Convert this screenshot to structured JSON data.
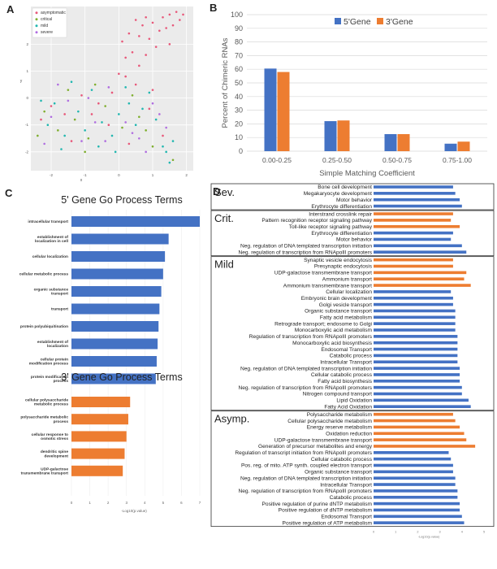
{
  "panels": {
    "a": "A",
    "b": "B",
    "c": "C",
    "d": "D"
  },
  "colors": {
    "asymptomatic": "#e8587a",
    "critical": "#7fae2e",
    "mild": "#22b7b0",
    "severe": "#b06ee0",
    "blue": "#4472c4",
    "orange": "#ed7d31"
  },
  "chart_data": [
    {
      "id": "A",
      "type": "scatter",
      "title": "",
      "xlabel": "x",
      "ylabel": "y",
      "xlim": [
        -2.6,
        2.2
      ],
      "ylim": [
        -2.7,
        3.4
      ],
      "xticks": [
        -2,
        -1,
        0,
        1,
        2
      ],
      "yticks": [
        -2,
        -1,
        0,
        1,
        2
      ],
      "grid": true,
      "legend": "top-left",
      "series": [
        {
          "name": "asymptomatic",
          "color": "#e8587a",
          "points": [
            [
              0.1,
              2.1
            ],
            [
              0.3,
              2.4
            ],
            [
              0.5,
              2.9
            ],
            [
              0.6,
              2.3
            ],
            [
              0.7,
              2.7
            ],
            [
              0.8,
              3.0
            ],
            [
              0.9,
              2.2
            ],
            [
              1.0,
              2.8
            ],
            [
              1.2,
              2.5
            ],
            [
              1.3,
              3.0
            ],
            [
              1.4,
              2.6
            ],
            [
              1.5,
              3.1
            ],
            [
              1.6,
              2.7
            ],
            [
              1.7,
              3.2
            ],
            [
              1.8,
              2.9
            ],
            [
              1.9,
              3.1
            ],
            [
              0.2,
              1.5
            ],
            [
              0.4,
              1.7
            ],
            [
              0.6,
              1.2
            ],
            [
              0.8,
              1.6
            ],
            [
              1.1,
              1.9
            ],
            [
              0.2,
              0.8
            ],
            [
              0.5,
              0.5
            ],
            [
              -0.2,
              0.2
            ],
            [
              -0.6,
              -0.2
            ],
            [
              -1.1,
              0.1
            ],
            [
              -1.6,
              -0.6
            ],
            [
              -2.0,
              -0.3
            ],
            [
              -0.3,
              -1.0
            ],
            [
              0.9,
              -0.4
            ],
            [
              1.3,
              -1.4
            ],
            [
              -1.4,
              -1.6
            ],
            [
              -0.8,
              -0.6
            ],
            [
              0.3,
              -1.7
            ],
            [
              -2.3,
              -0.8
            ],
            [
              1.5,
              2.0
            ],
            [
              0.0,
              0.9
            ],
            [
              1.0,
              0.3
            ]
          ]
        },
        {
          "name": "critical",
          "color": "#7fae2e",
          "points": [
            [
              -2.2,
              -0.5
            ],
            [
              -1.8,
              -1.2
            ],
            [
              -1.3,
              -0.8
            ],
            [
              -0.9,
              -1.5
            ],
            [
              -0.4,
              -0.3
            ],
            [
              0.1,
              -1.1
            ],
            [
              0.6,
              -0.7
            ],
            [
              1.0,
              -1.8
            ],
            [
              -1.5,
              0.3
            ],
            [
              -0.7,
              0.5
            ],
            [
              0.4,
              0.1
            ],
            [
              -2.4,
              -1.4
            ],
            [
              -1.0,
              -2.0
            ],
            [
              0.8,
              -1.2
            ],
            [
              1.6,
              -2.3
            ]
          ]
        },
        {
          "name": "mild",
          "color": "#22b7b0",
          "points": [
            [
              -2.1,
              -1.0
            ],
            [
              -1.9,
              -0.2
            ],
            [
              -1.6,
              -1.4
            ],
            [
              -1.2,
              -0.5
            ],
            [
              -1.0,
              -1.2
            ],
            [
              -0.8,
              0.3
            ],
            [
              -0.5,
              -0.9
            ],
            [
              -0.2,
              -1.4
            ],
            [
              0.0,
              -0.6
            ],
            [
              0.3,
              -0.2
            ],
            [
              0.5,
              -1.0
            ],
            [
              0.7,
              -0.4
            ],
            [
              1.1,
              -0.8
            ],
            [
              1.3,
              -1.8
            ],
            [
              1.4,
              -2.0
            ],
            [
              1.5,
              -2.4
            ],
            [
              1.6,
              -1.6
            ],
            [
              -1.4,
              0.6
            ],
            [
              -0.6,
              -1.8
            ],
            [
              0.2,
              0.4
            ],
            [
              -2.3,
              -0.1
            ],
            [
              -1.7,
              -1.9
            ],
            [
              0.9,
              0.2
            ],
            [
              -0.1,
              -2.0
            ]
          ]
        },
        {
          "name": "severe",
          "color": "#b06ee0",
          "points": [
            [
              -2.0,
              -0.7
            ],
            [
              -1.5,
              -0.1
            ],
            [
              -1.1,
              -1.6
            ],
            [
              -0.7,
              -0.9
            ],
            [
              -0.3,
              0.4
            ],
            [
              0.2,
              -0.9
            ],
            [
              0.6,
              -1.5
            ],
            [
              1.0,
              -0.2
            ],
            [
              -1.8,
              0.5
            ],
            [
              -0.4,
              -1.6
            ],
            [
              0.4,
              -1.3
            ],
            [
              1.2,
              -0.6
            ],
            [
              -2.2,
              -1.7
            ],
            [
              -0.9,
              0.0
            ],
            [
              0.8,
              -2.0
            ],
            [
              1.4,
              -1.1
            ]
          ]
        }
      ]
    },
    {
      "id": "B",
      "type": "bar",
      "title": "",
      "xlabel": "Simple Matching Coefficient",
      "ylabel": "Percent of Chimeric RNAs",
      "ylim": [
        0,
        100
      ],
      "yticks": [
        0,
        10,
        20,
        30,
        40,
        50,
        60,
        70,
        80,
        90,
        100
      ],
      "grid": true,
      "legend": "top-right",
      "categories": [
        "0.00-0.25",
        "0.25-0.50",
        "0.50-0.75",
        "0.75-1.00"
      ],
      "series": [
        {
          "name": "5'Gene",
          "color": "#4472c4",
          "values": [
            60.5,
            22,
            12.5,
            5.5
          ]
        },
        {
          "name": "3'Gene",
          "color": "#ed7d31",
          "values": [
            58,
            22.5,
            12.5,
            7
          ]
        }
      ]
    },
    {
      "id": "C",
      "type": "bar",
      "orientation": "horizontal",
      "xlabel": "-Log10(p.value)",
      "xlim": [
        0,
        7
      ],
      "xticks": [
        0,
        1,
        2,
        3,
        4,
        5,
        6,
        7
      ],
      "sections": [
        {
          "title": "5' Gene Go Process Terms",
          "color": "#4472c4",
          "categories": [
            "intracellular transport",
            "establishment of localization in cell",
            "cellular localization",
            "cellular metabolic process",
            "organic substance transport",
            "transport",
            "protein polyubiquitination",
            "establishment of localization",
            "cellular protein modification process",
            "protein modification process"
          ],
          "values": [
            7.0,
            5.3,
            5.1,
            5.0,
            4.9,
            4.8,
            4.75,
            4.7,
            4.65,
            4.6
          ]
        },
        {
          "title": "3' Gene Go Process Terms",
          "color": "#ed7d31",
          "categories": [
            "cellular polysaccharide metabolic process",
            "polysaccharide metabolic process",
            "cellular response to osmotic stress",
            "dendritic spine development",
            "UDP-galactose transmembrane transport"
          ],
          "values": [
            3.2,
            3.1,
            3.0,
            2.9,
            2.8
          ]
        }
      ]
    },
    {
      "id": "D",
      "type": "bar",
      "orientation": "horizontal",
      "xlabel": "-Log10(p.value)",
      "xlim": [
        0,
        5
      ],
      "groups": [
        {
          "title": "Sev.",
          "items": [
            {
              "label": "Bone cell development",
              "value": 3.6,
              "side": "5"
            },
            {
              "label": "Megakaryocyte development",
              "value": 3.7,
              "side": "5"
            },
            {
              "label": "Motor behavior",
              "value": 3.9,
              "side": "5"
            },
            {
              "label": "Erythrocyte differentiation",
              "value": 4.0,
              "side": "5"
            }
          ]
        },
        {
          "title": "Crit.",
          "items": [
            {
              "label": "Interstrand crosslink repair",
              "value": 3.6,
              "side": "3"
            },
            {
              "label": "Pattern recognition receptor signaling pathway",
              "value": 3.5,
              "side": "3"
            },
            {
              "label": "Toll-like receptor signaling pathway",
              "value": 3.9,
              "side": "3"
            },
            {
              "label": "Erythrocyte differentiation",
              "value": 3.6,
              "side": "5"
            },
            {
              "label": "Motor behavior",
              "value": 3.5,
              "side": "5"
            },
            {
              "label": "Neg. regulation of DNA templated transcription initiation",
              "value": 4.0,
              "side": "5"
            },
            {
              "label": "Neg. regulation of transcription from RNApolII promoters",
              "value": 4.2,
              "side": "5"
            }
          ]
        },
        {
          "title": "Mild",
          "items": [
            {
              "label": "Synaptic vesicle endocytosis",
              "value": 3.6,
              "side": "3"
            },
            {
              "label": "Presynaptic endocytosis",
              "value": 3.6,
              "side": "3"
            },
            {
              "label": "UDP-galactose transmembrane transport",
              "value": 4.2,
              "side": "3"
            },
            {
              "label": "Ammonium transport",
              "value": 4.1,
              "side": "3"
            },
            {
              "label": "Ammonium transmembrane transport",
              "value": 4.4,
              "side": "3"
            },
            {
              "label": "Cellular localization",
              "value": 3.5,
              "side": "5"
            },
            {
              "label": "Embryonic brain development",
              "value": 3.6,
              "side": "5"
            },
            {
              "label": "Golgi vesicle transport",
              "value": 3.6,
              "side": "5"
            },
            {
              "label": "Organic substance transport",
              "value": 3.7,
              "side": "5"
            },
            {
              "label": "Fatty acid metabolism",
              "value": 3.7,
              "side": "5"
            },
            {
              "label": "Retrograde transport; endosome to Golgi",
              "value": 3.7,
              "side": "5"
            },
            {
              "label": "Monocarboxylic acid metabolism",
              "value": 3.7,
              "side": "5"
            },
            {
              "label": "Regulation of transcription from RNApolII promoters",
              "value": 3.8,
              "side": "5"
            },
            {
              "label": "Monocarboxylic acid biosynthesis",
              "value": 3.8,
              "side": "5"
            },
            {
              "label": "Endosomal Transport",
              "value": 3.8,
              "side": "5"
            },
            {
              "label": "Catabolic process",
              "value": 3.8,
              "side": "5"
            },
            {
              "label": "Intracellular Transport",
              "value": 3.8,
              "side": "5"
            },
            {
              "label": "Neg. regulation of DNA templated transcription initiation",
              "value": 3.9,
              "side": "5"
            },
            {
              "label": "Cellular catabolic process",
              "value": 3.9,
              "side": "5"
            },
            {
              "label": "Fatty acid biosynthesis",
              "value": 3.9,
              "side": "5"
            },
            {
              "label": "Neg. regulation of transcription from RNApolII promoters",
              "value": 4.0,
              "side": "5"
            },
            {
              "label": "Nitrogen compound transport",
              "value": 4.0,
              "side": "5"
            },
            {
              "label": "Lipid Oxidation",
              "value": 4.3,
              "side": "5"
            },
            {
              "label": "Fatty Acid Oxidation",
              "value": 4.4,
              "side": "5"
            }
          ]
        },
        {
          "title": "Asymp.",
          "items": [
            {
              "label": "Polysaccharide metabolism",
              "value": 3.6,
              "side": "3"
            },
            {
              "label": "Cellular polysaccharide metabolism",
              "value": 3.7,
              "side": "3"
            },
            {
              "label": "Energy reserve metabolism",
              "value": 3.9,
              "side": "3"
            },
            {
              "label": "Oxidation reduction",
              "value": 4.1,
              "side": "3"
            },
            {
              "label": "UDP-galactose transmembrane transport",
              "value": 4.2,
              "side": "3"
            },
            {
              "label": "Generation of precursor metabolites and energy",
              "value": 4.6,
              "side": "3"
            },
            {
              "label": "Regulation of transcript initiation from RNApolII promoters",
              "value": 3.4,
              "side": "5"
            },
            {
              "label": "Cellular catabolic process",
              "value": 3.5,
              "side": "5"
            },
            {
              "label": "Pos. reg. of mito. ATP synth. coupled electron transport",
              "value": 3.6,
              "side": "5"
            },
            {
              "label": "Organic substance transport",
              "value": 3.6,
              "side": "5"
            },
            {
              "label": "Neg. regulation of DNA templated transcription initiation",
              "value": 3.7,
              "side": "5"
            },
            {
              "label": "Intracellular Transport",
              "value": 3.7,
              "side": "5"
            },
            {
              "label": "Neg. regulation of transcription from RNApolII promoters",
              "value": 3.8,
              "side": "5"
            },
            {
              "label": "Catabolic process",
              "value": 3.8,
              "side": "5"
            },
            {
              "label": "Positive regulation of purine dNTP metabolism",
              "value": 3.9,
              "side": "5"
            },
            {
              "label": "Positive regulation of dNTP metabolism",
              "value": 3.9,
              "side": "5"
            },
            {
              "label": "Endosomal Transport",
              "value": 4.0,
              "side": "5"
            },
            {
              "label": "Positive regulation of ATP metabolism",
              "value": 4.1,
              "side": "5"
            }
          ]
        }
      ]
    }
  ]
}
